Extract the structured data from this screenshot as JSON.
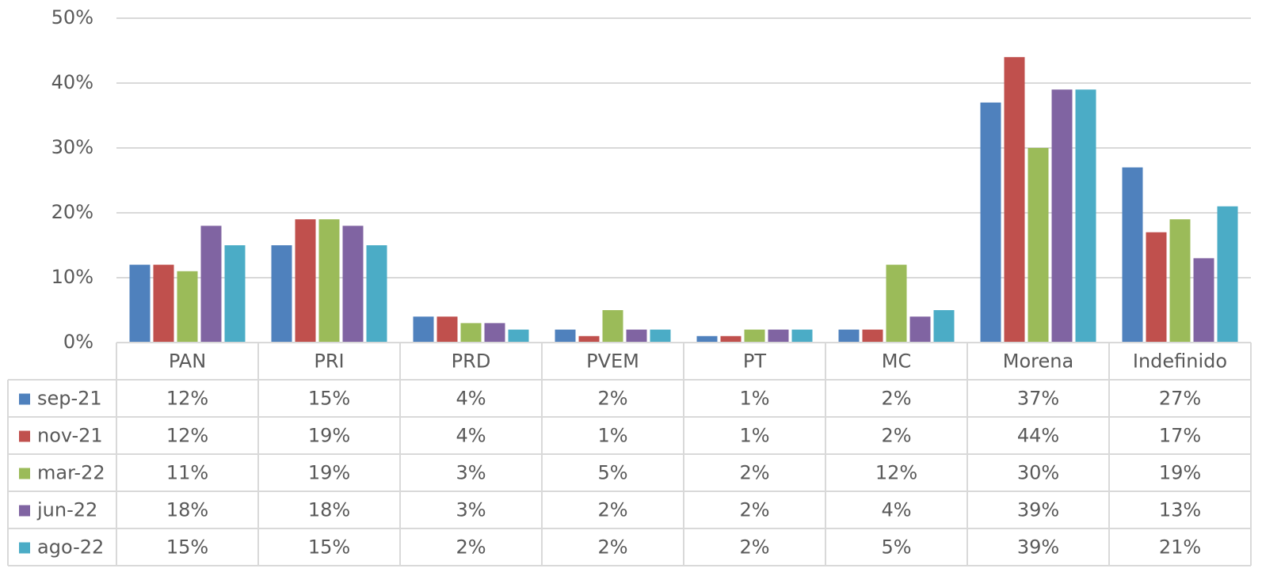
{
  "chart_data": {
    "type": "bar",
    "categories": [
      "PAN",
      "PRI",
      "PRD",
      "PVEM",
      "PT",
      "MC",
      "Morena",
      "Indefinido"
    ],
    "series": [
      {
        "name": "sep-21",
        "color": "#4f81bd",
        "values": [
          12,
          15,
          4,
          2,
          1,
          2,
          37,
          27
        ],
        "value_labels": [
          "12%",
          "15%",
          "4%",
          "2%",
          "1%",
          "2%",
          "37%",
          "27%"
        ]
      },
      {
        "name": "nov-21",
        "color": "#c0504d",
        "values": [
          12,
          19,
          4,
          1,
          1,
          2,
          44,
          17
        ],
        "value_labels": [
          "12%",
          "19%",
          "4%",
          "1%",
          "1%",
          "2%",
          "44%",
          "17%"
        ]
      },
      {
        "name": "mar-22",
        "color": "#9bbb59",
        "values": [
          11,
          19,
          3,
          5,
          2,
          12,
          30,
          19
        ],
        "value_labels": [
          "11%",
          "19%",
          "3%",
          "5%",
          "2%",
          "12%",
          "30%",
          "19%"
        ]
      },
      {
        "name": "jun-22",
        "color": "#8064a2",
        "values": [
          18,
          18,
          3,
          2,
          2,
          4,
          39,
          13
        ],
        "value_labels": [
          "18%",
          "18%",
          "3%",
          "2%",
          "2%",
          "4%",
          "39%",
          "13%"
        ]
      },
      {
        "name": "ago-22",
        "color": "#4bacc6",
        "values": [
          15,
          15,
          2,
          2,
          2,
          5,
          39,
          21
        ],
        "value_labels": [
          "15%",
          "15%",
          "2%",
          "2%",
          "2%",
          "5%",
          "39%",
          "21%"
        ]
      }
    ],
    "ylim": [
      0,
      50
    ],
    "yticks": [
      {
        "value": 0,
        "label": "0%"
      },
      {
        "value": 10,
        "label": "10%"
      },
      {
        "value": 20,
        "label": "20%"
      },
      {
        "value": 30,
        "label": "30%"
      },
      {
        "value": 40,
        "label": "40%"
      },
      {
        "value": 50,
        "label": "50%"
      }
    ],
    "grid": true,
    "legend": "table"
  }
}
